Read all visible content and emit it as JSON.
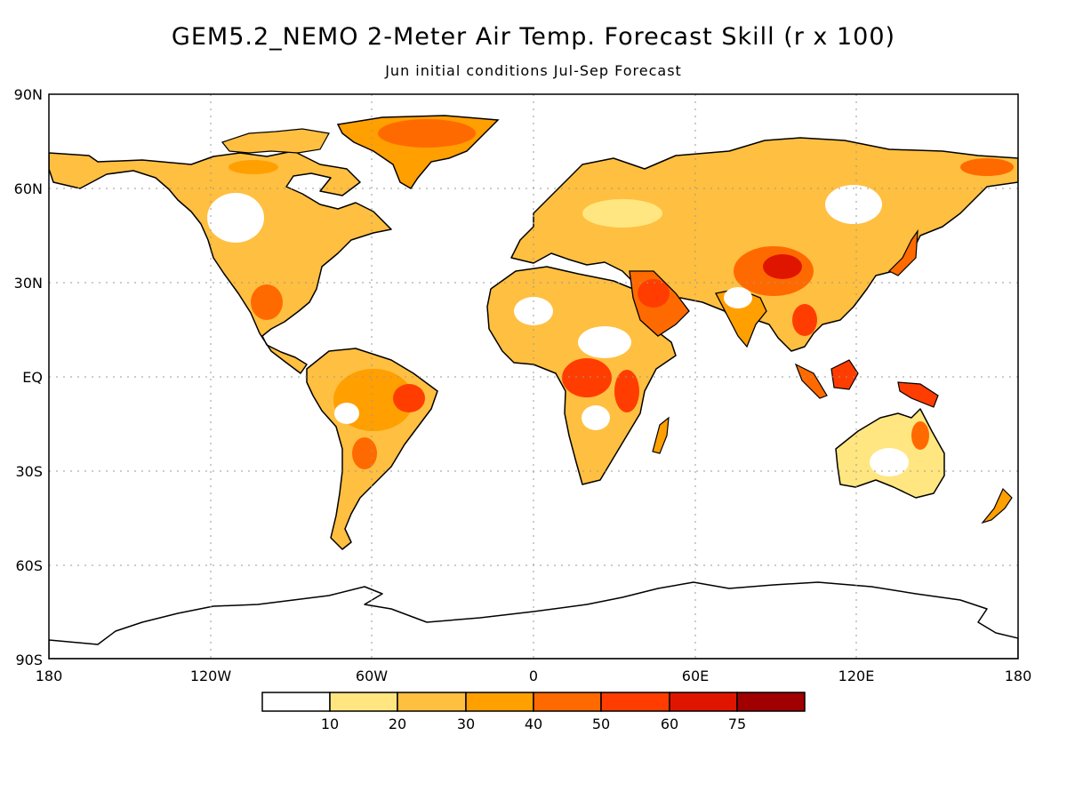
{
  "title": "GEM5.2_NEMO 2-Meter Air Temp. Forecast Skill (r x 100)",
  "subtitle": "Jun initial conditions   Jul-Sep Forecast",
  "axes": {
    "lat_labels": [
      "90N",
      "60N",
      "30N",
      "EQ",
      "30S",
      "60S",
      "90S"
    ],
    "lon_labels": [
      "180",
      "120W",
      "60W",
      "0",
      "60E",
      "120E",
      "180"
    ]
  },
  "colorbar": {
    "labels": [
      "10",
      "20",
      "30",
      "40",
      "50",
      "60",
      "75"
    ],
    "colors": [
      "#ffffff",
      "#ffe680",
      "#ffbf40",
      "#ff9f00",
      "#ff6a00",
      "#ff3d00",
      "#e01500",
      "#a00000"
    ]
  },
  "map": {
    "projection": "equirectangular",
    "lon_range": [
      -180,
      180
    ],
    "lat_range": [
      -90,
      90
    ],
    "grid": true,
    "skill_hotspots": [
      {
        "region": "Central Africa",
        "level": "50-60"
      },
      {
        "region": "Tibetan Plateau / Central Asia",
        "level": "50-75"
      },
      {
        "region": "Arabian Peninsula",
        "level": "50-60"
      },
      {
        "region": "Southeast Asia",
        "level": "50-60"
      },
      {
        "region": "Greenland",
        "level": "40-50"
      },
      {
        "region": "Amazon",
        "level": "40-50"
      },
      {
        "region": "Maritime Continent",
        "level": "50-60"
      }
    ]
  }
}
